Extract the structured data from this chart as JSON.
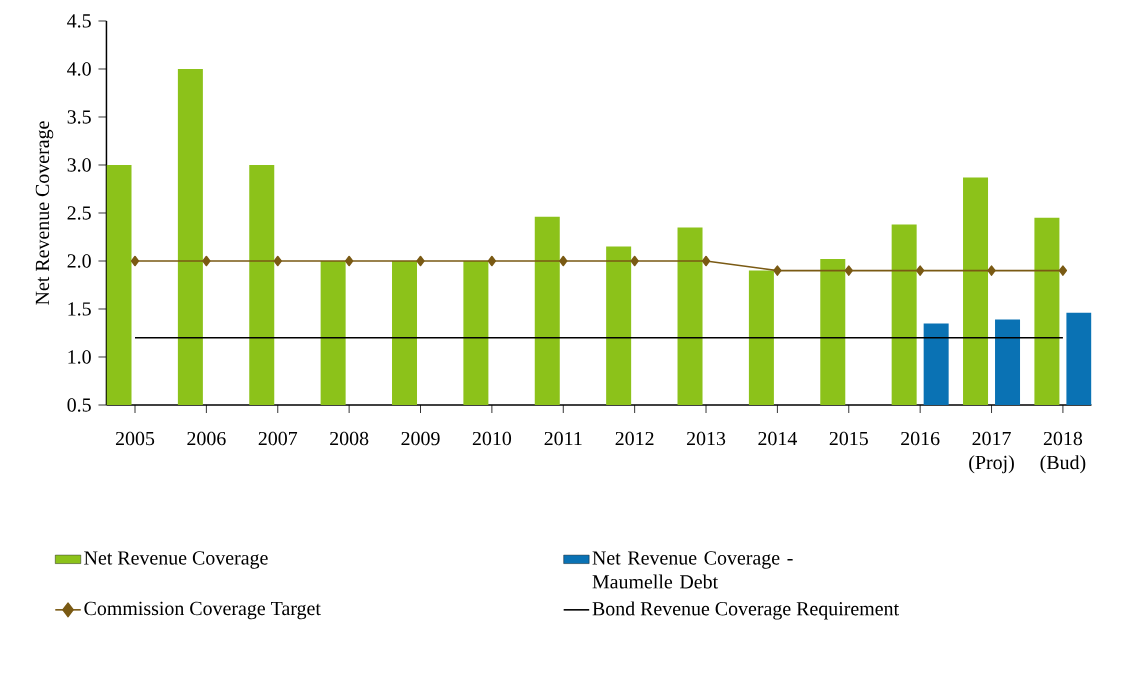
{
  "chart_data": {
    "type": "bar",
    "ylabel": "Net Revenue Coverage",
    "categories": [
      "2005",
      "2006",
      "2007",
      "2008",
      "2009",
      "2010",
      "2011",
      "2012",
      "2013",
      "2014",
      "2015",
      "2016",
      "2017 (Proj)",
      "2018 (Bud)"
    ],
    "series": [
      {
        "name": "Net Revenue Coverage",
        "color": "#8cc21a",
        "values": [
          3.0,
          4.0,
          3.0,
          2.0,
          2.0,
          2.0,
          2.46,
          2.15,
          2.35,
          1.9,
          2.02,
          2.38,
          2.87,
          2.45
        ]
      },
      {
        "name": "Net Revenue Coverage - Maumelle Debt",
        "color": "#0a72b4",
        "values": [
          null,
          null,
          null,
          null,
          null,
          null,
          null,
          null,
          null,
          null,
          null,
          1.35,
          1.39,
          1.46
        ]
      },
      {
        "name": "Commission Coverage Target",
        "type": "line",
        "color": "#7a5a14",
        "marker": "diamond",
        "values": [
          2.0,
          2.0,
          2.0,
          2.0,
          2.0,
          2.0,
          2.0,
          2.0,
          2.0,
          1.9,
          1.9,
          1.9,
          1.9,
          1.9
        ]
      },
      {
        "name": "Bond Revenue Coverage Requirement",
        "type": "line",
        "color": "#000000",
        "marker": "none",
        "values": [
          1.2,
          1.2,
          1.2,
          1.2,
          1.2,
          1.2,
          1.2,
          1.2,
          1.2,
          1.2,
          1.2,
          1.2,
          1.2,
          1.2
        ]
      }
    ],
    "ylim": [
      0.5,
      4.5
    ],
    "yticks": [
      0.5,
      {
        "value": 1.0,
        "label": "1.0"
      },
      1.5,
      {
        "value": 2.0,
        "label": "2.0"
      },
      2.5,
      {
        "value": 3.0,
        "label": "3.0"
      },
      3.5,
      {
        "value": 4.0,
        "label": "4.0"
      },
      4.5
    ],
    "legend": "bottom"
  }
}
